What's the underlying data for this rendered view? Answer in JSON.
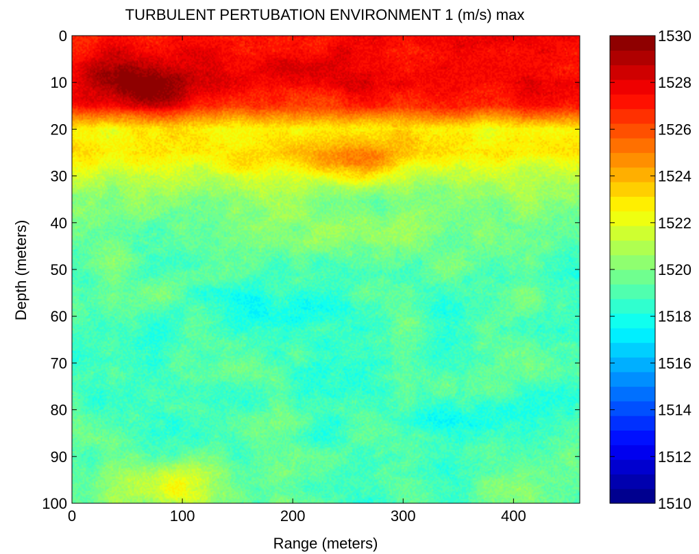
{
  "chart_data": {
    "type": "heatmap",
    "title": "TURBULENT PERTUBATION ENVIRONMENT 1 (m/s) max",
    "xlabel": "Range (meters)",
    "ylabel": "Depth (meters)",
    "xlim": [
      0,
      460
    ],
    "ylim": [
      0,
      100
    ],
    "y_reversed": true,
    "xticks": [
      0,
      100,
      200,
      300,
      400
    ],
    "yticks": [
      0,
      10,
      20,
      30,
      40,
      50,
      60,
      70,
      80,
      90,
      100
    ],
    "colorbar": {
      "min": 1510,
      "max": 1530,
      "ticks": [
        1510,
        1512,
        1514,
        1516,
        1518,
        1520,
        1522,
        1524,
        1526,
        1528,
        1530
      ],
      "colormap": "jet"
    },
    "mean_profile": {
      "depth": [
        0,
        5,
        10,
        15,
        20,
        25,
        30,
        35,
        40,
        50,
        60,
        70,
        80,
        90,
        100
      ],
      "value": [
        1527.3,
        1527.6,
        1527.8,
        1526.8,
        1522.6,
        1523.0,
        1521.4,
        1520.2,
        1519.8,
        1519.3,
        1519.1,
        1519.0,
        1519.0,
        1519.1,
        1519.2
      ]
    },
    "features": [
      {
        "range": 65,
        "depth": 11,
        "value": 1530,
        "note": "max"
      },
      {
        "range": 260,
        "depth": 26,
        "value": 1525
      },
      {
        "range": 200,
        "depth": 58,
        "value": 1517.5
      },
      {
        "range": 350,
        "depth": 82,
        "value": 1517.5
      },
      {
        "range": 85,
        "depth": 97,
        "value": 1522.5
      }
    ]
  }
}
